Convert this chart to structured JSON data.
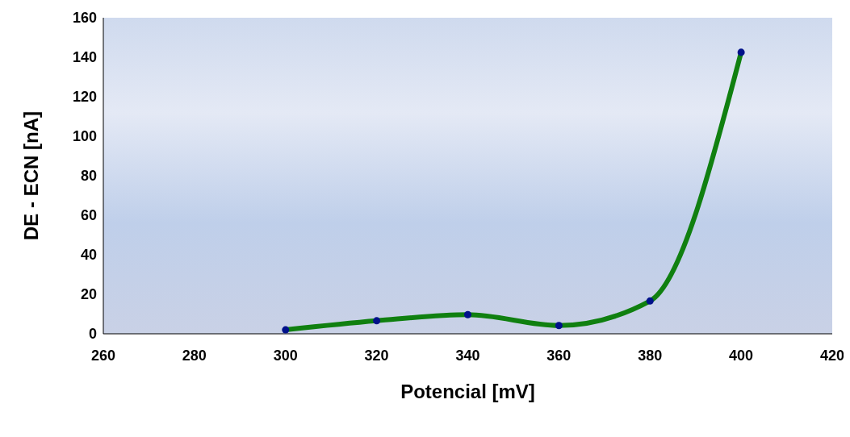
{
  "chart_data": {
    "type": "line",
    "xlabel": "Potencial [mV]",
    "ylabel": "DE - ECN [nA]",
    "x": [
      300,
      320,
      340,
      360,
      380,
      400
    ],
    "series": [
      {
        "color": "#108010",
        "values": [
          2,
          6.6,
          9.7,
          4.2,
          16.6,
          142.5
        ],
        "marker": "none"
      },
      {
        "type": "scatter",
        "color": "#00118a",
        "values": [
          2,
          6.6,
          9.7,
          4.2,
          16.6,
          142.5
        ],
        "marker": "circle"
      }
    ],
    "xlim": [
      260,
      420
    ],
    "xticks": [
      260,
      280,
      300,
      320,
      340,
      360,
      380,
      400,
      420
    ],
    "ylim": [
      0,
      160
    ],
    "yticks": [
      0,
      20,
      40,
      60,
      80,
      100,
      120,
      140,
      160
    ],
    "grid": false
  }
}
